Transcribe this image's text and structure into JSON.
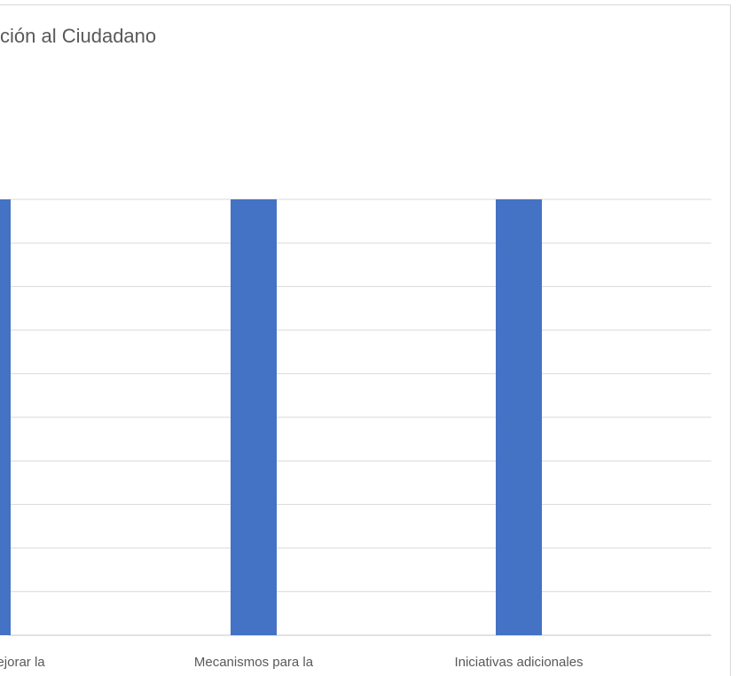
{
  "chart_data": {
    "type": "bar",
    "title": "ción al Ciudadano",
    "categories": [
      "nos para mejorar la",
      "Mecanismos para la",
      "Iniciativas adicionales"
    ],
    "values": [
      100,
      100,
      100
    ],
    "ylim": [
      0,
      100
    ],
    "grid": true,
    "legend": "none",
    "colors": {
      "bar": "#4472c4",
      "grid": "#d9d9d9",
      "text": "#595959"
    }
  }
}
